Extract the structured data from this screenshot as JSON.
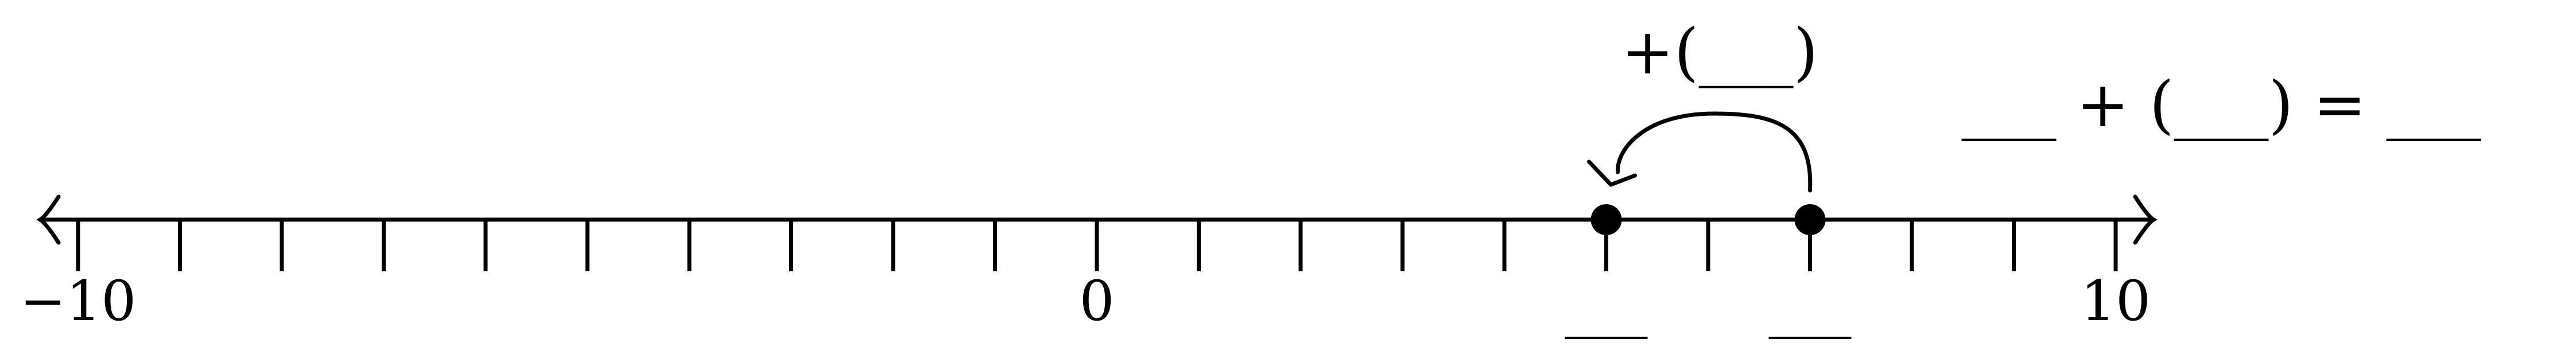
{
  "number_line": {
    "min": -10,
    "max": 10,
    "step": 1,
    "arrows": "both",
    "labels": [
      {
        "value": -10,
        "text": "−10"
      },
      {
        "value": 0,
        "text": "0"
      },
      {
        "value": 10,
        "text": "10"
      }
    ]
  },
  "points": [
    {
      "value": 5,
      "label": "___"
    },
    {
      "value": 7,
      "label": "___"
    }
  ],
  "jump": {
    "from": 7,
    "to": 5,
    "label": "+(___)"
  },
  "equation": {
    "text": "___ + (___) = ___"
  },
  "colors": {
    "line": "#000000",
    "point": "#000000",
    "background": "#ffffff"
  }
}
